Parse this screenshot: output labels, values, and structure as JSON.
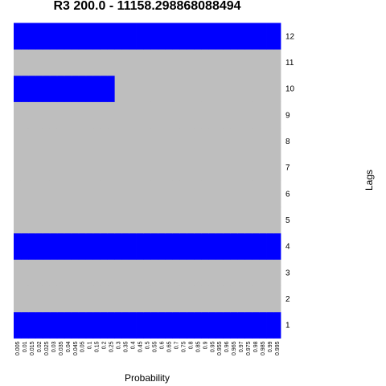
{
  "chart_data": {
    "type": "heatmap",
    "title": "R3 200.0 - 11158.298868088494",
    "xlabel": "Probability",
    "ylabel": "Lags",
    "x": [
      "0.005",
      "0.01",
      "0.015",
      "0.02",
      "0.025",
      "0.03",
      "0.035",
      "0.04",
      "0.045",
      "0.05",
      "0.1",
      "0.15",
      "0.2",
      "0.25",
      "0.3",
      "0.35",
      "0.4",
      "0.45",
      "0.5",
      "0.55",
      "0.6",
      "0.65",
      "0.7",
      "0.75",
      "0.8",
      "0.85",
      "0.9",
      "0.95",
      "0.955",
      "0.96",
      "0.965",
      "0.97",
      "0.975",
      "0.98",
      "0.985",
      "0.99",
      "0.995"
    ],
    "y": [
      "1",
      "2",
      "3",
      "4",
      "5",
      "6",
      "7",
      "8",
      "9",
      "10",
      "11",
      "12"
    ],
    "colors": {
      "significant": "#0000ff",
      "not_significant": "#bebebe"
    },
    "grid": false,
    "legend": "none",
    "rows": [
      {
        "lag": "1",
        "significant_from": "0.005",
        "significant_to": "0.995"
      },
      {
        "lag": "2",
        "significant_from": null,
        "significant_to": null
      },
      {
        "lag": "3",
        "significant_from": null,
        "significant_to": null
      },
      {
        "lag": "4",
        "significant_from": "0.005",
        "significant_to": "0.995"
      },
      {
        "lag": "5",
        "significant_from": null,
        "significant_to": null
      },
      {
        "lag": "6",
        "significant_from": null,
        "significant_to": null
      },
      {
        "lag": "7",
        "significant_from": null,
        "significant_to": null
      },
      {
        "lag": "8",
        "significant_from": null,
        "significant_to": null
      },
      {
        "lag": "9",
        "significant_from": null,
        "significant_to": null
      },
      {
        "lag": "10",
        "significant_from": "0.005",
        "significant_to": "0.25"
      },
      {
        "lag": "11",
        "significant_from": null,
        "significant_to": null
      },
      {
        "lag": "12",
        "significant_from": "0.005",
        "significant_to": "0.995"
      }
    ]
  }
}
